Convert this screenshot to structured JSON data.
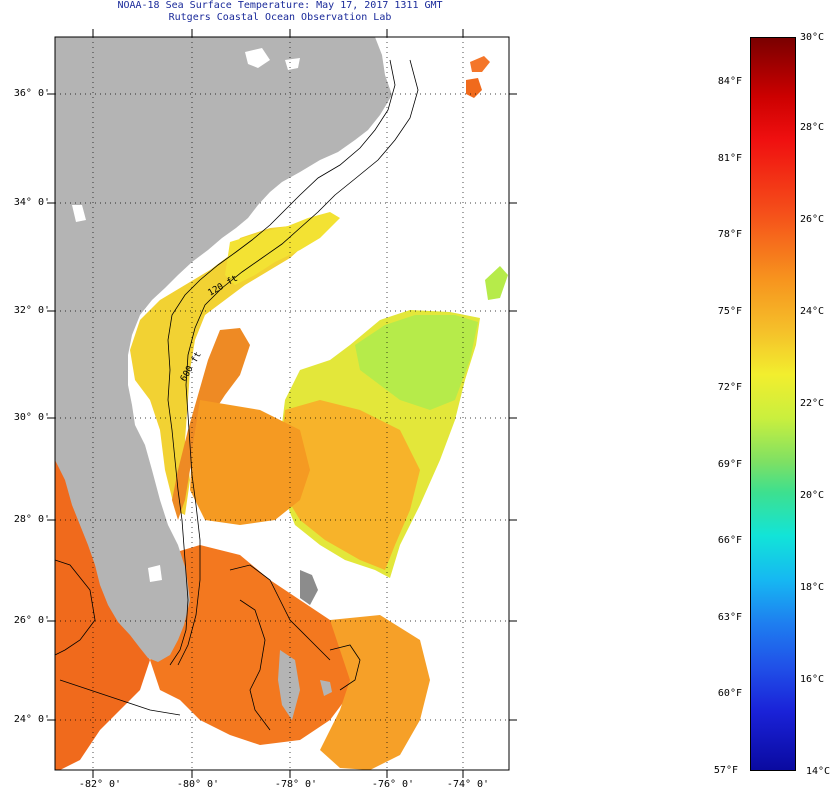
{
  "header": {
    "title_line1": "NOAA-18 Sea Surface Temperature:  May 17, 2017 1311 GMT",
    "title_line2": "Rutgers Coastal Ocean Observation Lab"
  },
  "map": {
    "lat_labels": [
      "36° 0'",
      "34° 0'",
      "32° 0'",
      "30° 0'",
      "28° 0'",
      "26° 0'",
      "24° 0'"
    ],
    "lon_labels": [
      "-82° 0'",
      "-80° 0'",
      "-78° 0'",
      "-76° 0'",
      "-74° 0'"
    ],
    "contour_labels": [
      "120 ft",
      "600 ft"
    ],
    "colors": {
      "land": "#b4b4b4",
      "warm_orange": "#f06a1c",
      "orange": "#f7921f",
      "yellow_orange": "#f9c02a",
      "yellow": "#f2e42e",
      "yellow_green": "#c9ef3e",
      "green": "#9ee55a"
    }
  },
  "colorbar": {
    "fahrenheit_labels": [
      "84°F",
      "81°F",
      "78°F",
      "75°F",
      "72°F",
      "69°F",
      "66°F",
      "63°F",
      "60°F",
      "57°F"
    ],
    "celsius_labels": [
      "30°C",
      "28°C",
      "26°C",
      "24°C",
      "22°C",
      "20°C",
      "18°C",
      "16°C",
      "14°C"
    ],
    "range_celsius": [
      14,
      30
    ],
    "range_fahrenheit": [
      57.2,
      86
    ]
  }
}
